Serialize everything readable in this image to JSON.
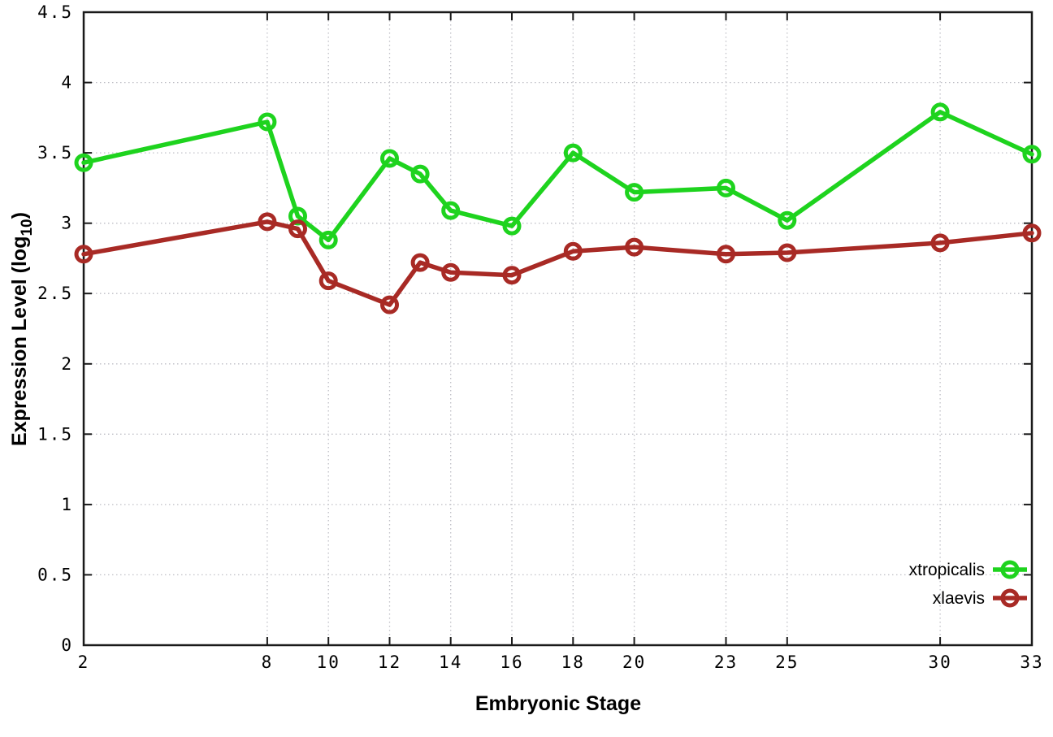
{
  "chart_data": {
    "type": "line",
    "title": "",
    "xlabel": "Embryonic Stage",
    "ylabel": "Expression Level (log10)",
    "ylabel_parts": {
      "main": "Expression Level (log",
      "subscript": "10",
      "suffix": ")"
    },
    "x": [
      2,
      8,
      9,
      10,
      12,
      13,
      14,
      16,
      18,
      20,
      23,
      25,
      30,
      33
    ],
    "series": [
      {
        "name": "xtropicalis",
        "color": "#1ed31e",
        "values": [
          3.43,
          3.72,
          3.05,
          2.88,
          3.46,
          3.35,
          3.09,
          2.98,
          3.5,
          3.22,
          3.25,
          3.02,
          3.79,
          3.49
        ]
      },
      {
        "name": "xlaevis",
        "color": "#a82a25",
        "values": [
          2.78,
          3.01,
          2.96,
          2.59,
          2.42,
          2.72,
          2.65,
          2.63,
          2.8,
          2.83,
          2.78,
          2.79,
          2.86,
          2.93
        ]
      }
    ],
    "xticks": {
      "values": [
        2,
        8,
        10,
        12,
        14,
        16,
        18,
        20,
        23,
        25,
        30,
        33
      ],
      "labels": [
        "2",
        "8",
        "10",
        "12",
        "14",
        "16",
        "18",
        "20",
        "23",
        "25",
        "30",
        "33"
      ]
    },
    "yticks": {
      "values": [
        0,
        0.5,
        1,
        1.5,
        2,
        2.5,
        3,
        3.5,
        4,
        4.5
      ],
      "labels": [
        "0",
        "0.5",
        "1",
        "1.5",
        "2",
        "2.5",
        "3",
        "3.5",
        "4",
        "4.5"
      ]
    },
    "xlim": [
      2,
      33
    ],
    "ylim": [
      0,
      4.5
    ],
    "grid": true,
    "legend": {
      "position": "inside-bottom-right",
      "entries": [
        "xtropicalis",
        "xlaevis"
      ]
    },
    "axis_color": "#1a1a1a",
    "grid_color": "#bfbfc6",
    "text_color": "#000000"
  }
}
